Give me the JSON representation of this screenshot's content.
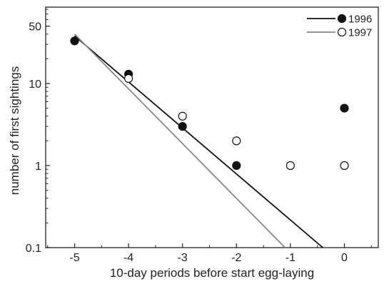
{
  "chart_data": {
    "type": "scatter",
    "xlabel": "10-day periods before start egg-laying",
    "ylabel": "number of first sightings",
    "xlim": [
      -5.5,
      0.7
    ],
    "ylim": [
      0.1,
      100
    ],
    "y_scale": "log",
    "x_ticks": [
      -5,
      -4,
      -3,
      -2,
      -1,
      0
    ],
    "y_ticks": [
      0.1,
      1,
      10,
      50
    ],
    "y_tick_labels": [
      "0.1",
      "1",
      "10",
      "50"
    ],
    "legend_position": "top-right",
    "series": [
      {
        "name": "1996",
        "marker": "filled-circle",
        "color": "#111111",
        "points": [
          {
            "x": -5,
            "y": 33
          },
          {
            "x": -4,
            "y": 13
          },
          {
            "x": -3,
            "y": 3
          },
          {
            "x": -2,
            "y": 1
          },
          {
            "x": 0,
            "y": 5
          }
        ],
        "fit_line": {
          "color": "#111111",
          "from": {
            "x": -5,
            "y": 38
          },
          "to": {
            "x": -0.4,
            "y": 0.1
          }
        }
      },
      {
        "name": "1997",
        "marker": "open-circle",
        "color": "#888888",
        "points": [
          {
            "x": -4,
            "y": 11.5
          },
          {
            "x": -3,
            "y": 4
          },
          {
            "x": -2,
            "y": 2
          },
          {
            "x": -1,
            "y": 1
          },
          {
            "x": 0,
            "y": 1
          }
        ],
        "fit_line": {
          "color": "#888888",
          "from": {
            "x": -5,
            "y": 40
          },
          "to": {
            "x": -1.1,
            "y": 0.1
          }
        }
      }
    ]
  }
}
